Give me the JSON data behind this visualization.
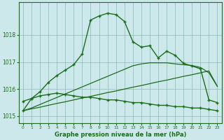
{
  "xlabel_label": "Graphe pression niveau de la mer (hPa)",
  "background_color": "#cce8ea",
  "grid_color": "#88bbbb",
  "line_color": "#1a6e1a",
  "x_values": [
    0,
    1,
    2,
    3,
    4,
    5,
    6,
    7,
    8,
    9,
    10,
    11,
    12,
    13,
    14,
    15,
    16,
    17,
    18,
    19,
    20,
    21,
    22,
    23
  ],
  "line1_values": [
    1015.2,
    1015.65,
    1015.9,
    1016.25,
    1016.5,
    1016.7,
    1016.9,
    1017.3,
    1018.55,
    1018.7,
    1018.8,
    1018.75,
    1018.5,
    1017.75,
    1017.55,
    1017.6,
    1017.15,
    1017.4,
    1017.25,
    1016.95,
    1016.85,
    1016.75,
    1015.6,
    1015.5
  ],
  "line2_values": [
    1015.55,
    1015.65,
    1015.75,
    1015.8,
    1015.85,
    1015.8,
    1015.75,
    1015.7,
    1015.7,
    1015.65,
    1015.6,
    1015.6,
    1015.55,
    1015.5,
    1015.5,
    1015.45,
    1015.4,
    1015.4,
    1015.35,
    1015.35,
    1015.3,
    1015.3,
    1015.25,
    1015.2
  ],
  "line3_values": [
    1015.2,
    1015.27,
    1015.33,
    1015.4,
    1015.47,
    1015.53,
    1015.6,
    1015.67,
    1015.73,
    1015.8,
    1015.87,
    1015.93,
    1016.0,
    1016.07,
    1016.13,
    1016.2,
    1016.27,
    1016.33,
    1016.4,
    1016.47,
    1016.53,
    1016.6,
    1016.67,
    1016.1
  ],
  "line4_values": [
    1015.2,
    1015.3,
    1015.43,
    1015.56,
    1015.69,
    1015.82,
    1015.95,
    1016.08,
    1016.21,
    1016.34,
    1016.47,
    1016.6,
    1016.73,
    1016.86,
    1016.93,
    1016.97,
    1016.97,
    1016.97,
    1016.93,
    1016.9,
    1016.87,
    1016.8,
    1016.6,
    1016.1
  ],
  "ylim": [
    1014.75,
    1019.2
  ],
  "yticks": [
    1015,
    1016,
    1017,
    1018
  ],
  "xticks": [
    0,
    1,
    2,
    3,
    4,
    5,
    6,
    7,
    8,
    9,
    10,
    11,
    12,
    13,
    14,
    15,
    16,
    17,
    18,
    19,
    20,
    21,
    22,
    23
  ]
}
